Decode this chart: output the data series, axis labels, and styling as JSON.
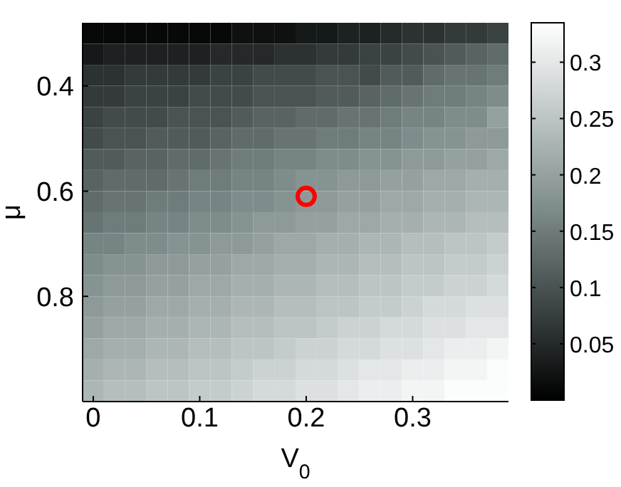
{
  "chart_data": {
    "type": "heatmap",
    "xlabel": "V$_{0}$",
    "ylabel": "μ",
    "x": [
      0,
      0.02,
      0.04,
      0.06,
      0.08,
      0.1,
      0.12,
      0.14,
      0.16,
      0.18,
      0.2,
      0.22,
      0.24,
      0.26,
      0.28,
      0.3,
      0.32,
      0.34,
      0.36,
      0.38
    ],
    "y": [
      0.3,
      0.34,
      0.38,
      0.42,
      0.46,
      0.5,
      0.54,
      0.58,
      0.62,
      0.66,
      0.7,
      0.74,
      0.78,
      0.82,
      0.86,
      0.9,
      0.94,
      0.98
    ],
    "xlim": [
      -0.01,
      0.39
    ],
    "ylim": [
      1.0,
      0.28
    ],
    "xticks": [
      0,
      0.1,
      0.2,
      0.3
    ],
    "yticks": [
      0.4,
      0.6,
      0.8
    ],
    "clim": [
      0,
      0.335
    ],
    "cticks": [
      0.05,
      0.1,
      0.15,
      0.2,
      0.25,
      0.3
    ],
    "cells": [
      [
        0.01,
        0.01,
        0.01,
        0.01,
        0.01,
        0.01,
        0.01,
        0.02,
        0.02,
        0.02,
        0.03,
        0.03,
        0.04,
        0.04,
        0.05,
        0.06,
        0.06,
        0.07,
        0.07,
        0.08
      ],
      [
        0.03,
        0.04,
        0.04,
        0.04,
        0.04,
        0.04,
        0.05,
        0.05,
        0.05,
        0.06,
        0.06,
        0.07,
        0.07,
        0.08,
        0.08,
        0.09,
        0.1,
        0.11,
        0.12,
        0.13
      ],
      [
        0.06,
        0.06,
        0.07,
        0.07,
        0.07,
        0.07,
        0.08,
        0.08,
        0.09,
        0.09,
        0.09,
        0.1,
        0.1,
        0.09,
        0.11,
        0.11,
        0.13,
        0.14,
        0.14,
        0.15
      ],
      [
        0.07,
        0.07,
        0.08,
        0.08,
        0.08,
        0.09,
        0.09,
        0.09,
        0.1,
        0.1,
        0.1,
        0.11,
        0.11,
        0.12,
        0.13,
        0.14,
        0.15,
        0.15,
        0.16,
        0.17
      ],
      [
        0.08,
        0.09,
        0.09,
        0.09,
        0.1,
        0.1,
        0.1,
        0.11,
        0.12,
        0.12,
        0.13,
        0.13,
        0.14,
        0.14,
        0.15,
        0.16,
        0.16,
        0.17,
        0.17,
        0.2
      ],
      [
        0.09,
        0.1,
        0.1,
        0.11,
        0.11,
        0.11,
        0.12,
        0.13,
        0.13,
        0.14,
        0.14,
        0.15,
        0.15,
        0.16,
        0.16,
        0.17,
        0.18,
        0.18,
        0.19,
        0.19
      ],
      [
        0.11,
        0.11,
        0.12,
        0.12,
        0.13,
        0.13,
        0.14,
        0.15,
        0.15,
        0.16,
        0.16,
        0.17,
        0.17,
        0.18,
        0.18,
        0.19,
        0.19,
        0.2,
        0.2,
        0.21
      ],
      [
        0.12,
        0.13,
        0.13,
        0.13,
        0.14,
        0.15,
        0.15,
        0.16,
        0.16,
        0.17,
        0.18,
        0.18,
        0.19,
        0.19,
        0.2,
        0.2,
        0.21,
        0.21,
        0.22,
        0.22
      ],
      [
        0.13,
        0.14,
        0.14,
        0.15,
        0.15,
        0.16,
        0.16,
        0.17,
        0.17,
        0.18,
        0.19,
        0.19,
        0.2,
        0.2,
        0.21,
        0.21,
        0.22,
        0.22,
        0.23,
        0.23
      ],
      [
        0.14,
        0.15,
        0.15,
        0.16,
        0.16,
        0.17,
        0.17,
        0.18,
        0.19,
        0.19,
        0.2,
        0.2,
        0.21,
        0.21,
        0.22,
        0.22,
        0.23,
        0.23,
        0.24,
        0.24
      ],
      [
        0.16,
        0.16,
        0.17,
        0.17,
        0.18,
        0.18,
        0.19,
        0.19,
        0.2,
        0.21,
        0.21,
        0.22,
        0.22,
        0.23,
        0.23,
        0.24,
        0.24,
        0.25,
        0.25,
        0.26
      ],
      [
        0.17,
        0.18,
        0.18,
        0.19,
        0.19,
        0.2,
        0.2,
        0.21,
        0.21,
        0.22,
        0.22,
        0.23,
        0.23,
        0.24,
        0.24,
        0.25,
        0.25,
        0.26,
        0.26,
        0.27
      ],
      [
        0.18,
        0.19,
        0.19,
        0.2,
        0.2,
        0.21,
        0.21,
        0.22,
        0.22,
        0.23,
        0.23,
        0.24,
        0.24,
        0.25,
        0.25,
        0.26,
        0.26,
        0.27,
        0.27,
        0.28
      ],
      [
        0.19,
        0.2,
        0.2,
        0.21,
        0.21,
        0.22,
        0.22,
        0.23,
        0.23,
        0.24,
        0.24,
        0.25,
        0.25,
        0.26,
        0.26,
        0.27,
        0.28,
        0.28,
        0.29,
        0.29
      ],
      [
        0.2,
        0.21,
        0.21,
        0.22,
        0.22,
        0.23,
        0.23,
        0.24,
        0.24,
        0.25,
        0.25,
        0.26,
        0.27,
        0.27,
        0.28,
        0.28,
        0.29,
        0.29,
        0.3,
        0.3
      ],
      [
        0.21,
        0.22,
        0.22,
        0.23,
        0.23,
        0.24,
        0.24,
        0.25,
        0.25,
        0.26,
        0.27,
        0.27,
        0.28,
        0.28,
        0.29,
        0.29,
        0.3,
        0.31,
        0.31,
        0.32
      ],
      [
        0.22,
        0.23,
        0.23,
        0.24,
        0.24,
        0.25,
        0.25,
        0.26,
        0.27,
        0.27,
        0.28,
        0.28,
        0.29,
        0.3,
        0.3,
        0.31,
        0.31,
        0.32,
        0.32,
        0.33
      ],
      [
        0.23,
        0.24,
        0.24,
        0.25,
        0.25,
        0.26,
        0.26,
        0.27,
        0.28,
        0.28,
        0.29,
        0.29,
        0.3,
        0.31,
        0.31,
        0.32,
        0.32,
        0.33,
        0.33,
        0.33
      ]
    ],
    "series": [
      {
        "type": "scatter",
        "x": [
          0.2
        ],
        "values": [
          0.61
        ],
        "color": "#ff0000",
        "marker": "circle"
      }
    ]
  }
}
